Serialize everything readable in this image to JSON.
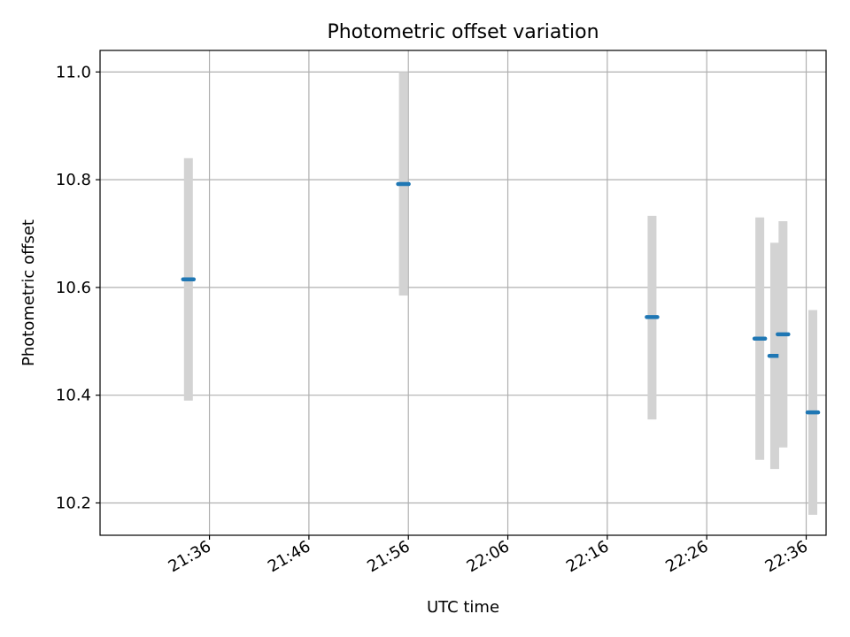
{
  "chart_data": {
    "type": "scatter",
    "title": "Photometric offset variation",
    "xlabel": "UTC time",
    "ylabel": "Photometric offset",
    "x_unit": "UTC time (HH:MM)",
    "xlim": [
      "21:25",
      "22:38"
    ],
    "ylim": [
      10.14,
      11.04
    ],
    "x_ticks": [
      "21:36",
      "21:46",
      "21:56",
      "22:06",
      "22:16",
      "22:26",
      "22:36"
    ],
    "y_ticks": [
      "10.2",
      "10.4",
      "10.6",
      "10.8",
      "11.0"
    ],
    "grid": true,
    "series": [
      {
        "points": [
          {
            "t": "21:33:53",
            "y": 10.615,
            "low": 10.39,
            "high": 10.84
          },
          {
            "t": "21:55:30",
            "y": 10.792,
            "low": 10.585,
            "high": 11.0
          },
          {
            "t": "22:20:30",
            "y": 10.545,
            "low": 10.355,
            "high": 10.733
          },
          {
            "t": "22:31:20",
            "y": 10.505,
            "low": 10.28,
            "high": 10.73
          },
          {
            "t": "22:32:50",
            "y": 10.473,
            "low": 10.263,
            "high": 10.683
          },
          {
            "t": "22:33:40",
            "y": 10.513,
            "low": 10.303,
            "high": 10.723
          },
          {
            "t": "22:36:40",
            "y": 10.368,
            "low": 10.178,
            "high": 10.558
          }
        ]
      }
    ],
    "colors": {
      "point": "#1f77b4",
      "errorbar": "#d3d3d3",
      "grid": "#b0b0b0",
      "axes": "#000000"
    }
  }
}
